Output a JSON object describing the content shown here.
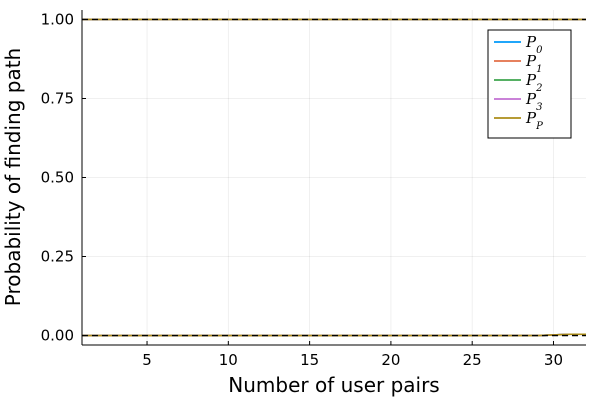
{
  "chart_data": {
    "type": "line",
    "xlabel": "Number of user pairs",
    "ylabel": "Probability of finding path",
    "xlim": [
      1,
      32
    ],
    "ylim": [
      -0.03,
      1.03
    ],
    "xticks": [
      5,
      10,
      15,
      20,
      25,
      30
    ],
    "yticks": [
      0.0,
      0.25,
      0.5,
      0.75,
      1.0
    ],
    "ytick_labels": [
      "0.00",
      "0.25",
      "0.50",
      "0.75",
      "1.00"
    ],
    "grid": true,
    "legend_position": "top-right",
    "x": [
      1,
      2,
      3,
      4,
      5,
      6,
      7,
      8,
      9,
      10,
      11,
      12,
      13,
      14,
      15,
      16,
      17,
      18,
      19,
      20,
      21,
      22,
      23,
      24,
      25,
      26,
      27,
      28,
      29,
      30,
      31,
      32
    ],
    "series": [
      {
        "name": "P0",
        "legend_base": "P",
        "legend_sub": "0",
        "color": "#009AFA",
        "upper": [
          1,
          1,
          1,
          1,
          1,
          1,
          1,
          1,
          1,
          1,
          1,
          1,
          1,
          1,
          1,
          1,
          1,
          1,
          1,
          1,
          1,
          1,
          1,
          1,
          1,
          1,
          1,
          1,
          1,
          1,
          1,
          1
        ],
        "lower": [
          0,
          0,
          0,
          0,
          0,
          0,
          0,
          0,
          0,
          0,
          0,
          0,
          0,
          0,
          0,
          0,
          0,
          0,
          0,
          0,
          0,
          0,
          0,
          0,
          0,
          0,
          0,
          0,
          0,
          0.002,
          0.004,
          0.004
        ]
      },
      {
        "name": "P1",
        "legend_base": "P",
        "legend_sub": "1",
        "color": "#E36F47",
        "upper": [
          1,
          1,
          1,
          1,
          1,
          1,
          1,
          1,
          1,
          1,
          1,
          1,
          1,
          1,
          1,
          1,
          1,
          1,
          1,
          1,
          1,
          1,
          1,
          1,
          1,
          1,
          1,
          1,
          1,
          1,
          1,
          1
        ],
        "lower": [
          0,
          0,
          0,
          0,
          0,
          0,
          0,
          0,
          0,
          0,
          0,
          0,
          0,
          0,
          0,
          0,
          0,
          0,
          0,
          0,
          0,
          0,
          0,
          0,
          0,
          0,
          0,
          0,
          0,
          0.002,
          0.004,
          0.004
        ]
      },
      {
        "name": "P2",
        "legend_base": "P",
        "legend_sub": "2",
        "color": "#3EA44E",
        "upper": [
          1,
          1,
          1,
          1,
          1,
          1,
          1,
          1,
          1,
          1,
          1,
          1,
          1,
          1,
          1,
          1,
          1,
          1,
          1,
          1,
          1,
          1,
          1,
          1,
          1,
          1,
          1,
          1,
          1,
          1,
          1,
          1
        ],
        "lower": [
          0,
          0,
          0,
          0,
          0,
          0,
          0,
          0,
          0,
          0,
          0,
          0,
          0,
          0,
          0,
          0,
          0,
          0,
          0,
          0,
          0,
          0,
          0,
          0,
          0,
          0,
          0,
          0,
          0,
          0.002,
          0.004,
          0.004
        ]
      },
      {
        "name": "P3",
        "legend_base": "P",
        "legend_sub": "3",
        "color": "#C271D2",
        "upper": [
          1,
          1,
          1,
          1,
          1,
          1,
          1,
          1,
          1,
          1,
          1,
          1,
          1,
          1,
          1,
          1,
          1,
          1,
          1,
          1,
          1,
          1,
          1,
          1,
          1,
          1,
          1,
          1,
          1,
          1,
          1,
          1
        ],
        "lower": [
          0,
          0,
          0,
          0,
          0,
          0,
          0,
          0,
          0,
          0,
          0,
          0,
          0,
          0,
          0,
          0,
          0,
          0,
          0,
          0,
          0,
          0,
          0,
          0,
          0,
          0,
          0,
          0,
          0,
          0.002,
          0.004,
          0.004
        ]
      },
      {
        "name": "PP",
        "legend_base": "P",
        "legend_sub": "P",
        "color": "#AC8D18",
        "upper": [
          1,
          1,
          1,
          1,
          1,
          1,
          1,
          1,
          1,
          1,
          1,
          1,
          1,
          1,
          1,
          1,
          1,
          1,
          1,
          1,
          1,
          1,
          1,
          1,
          1,
          1,
          1,
          1,
          1,
          1,
          1,
          1
        ],
        "lower": [
          0,
          0,
          0,
          0,
          0,
          0,
          0,
          0,
          0,
          0,
          0,
          0,
          0,
          0,
          0,
          0,
          0,
          0,
          0,
          0,
          0,
          0,
          0,
          0,
          0,
          0,
          0,
          0,
          0,
          0.002,
          0.004,
          0.004
        ]
      }
    ],
    "reference_lines": {
      "color": "#000000",
      "style": "dashed",
      "upper": 1.0,
      "lower": 0.0
    }
  }
}
